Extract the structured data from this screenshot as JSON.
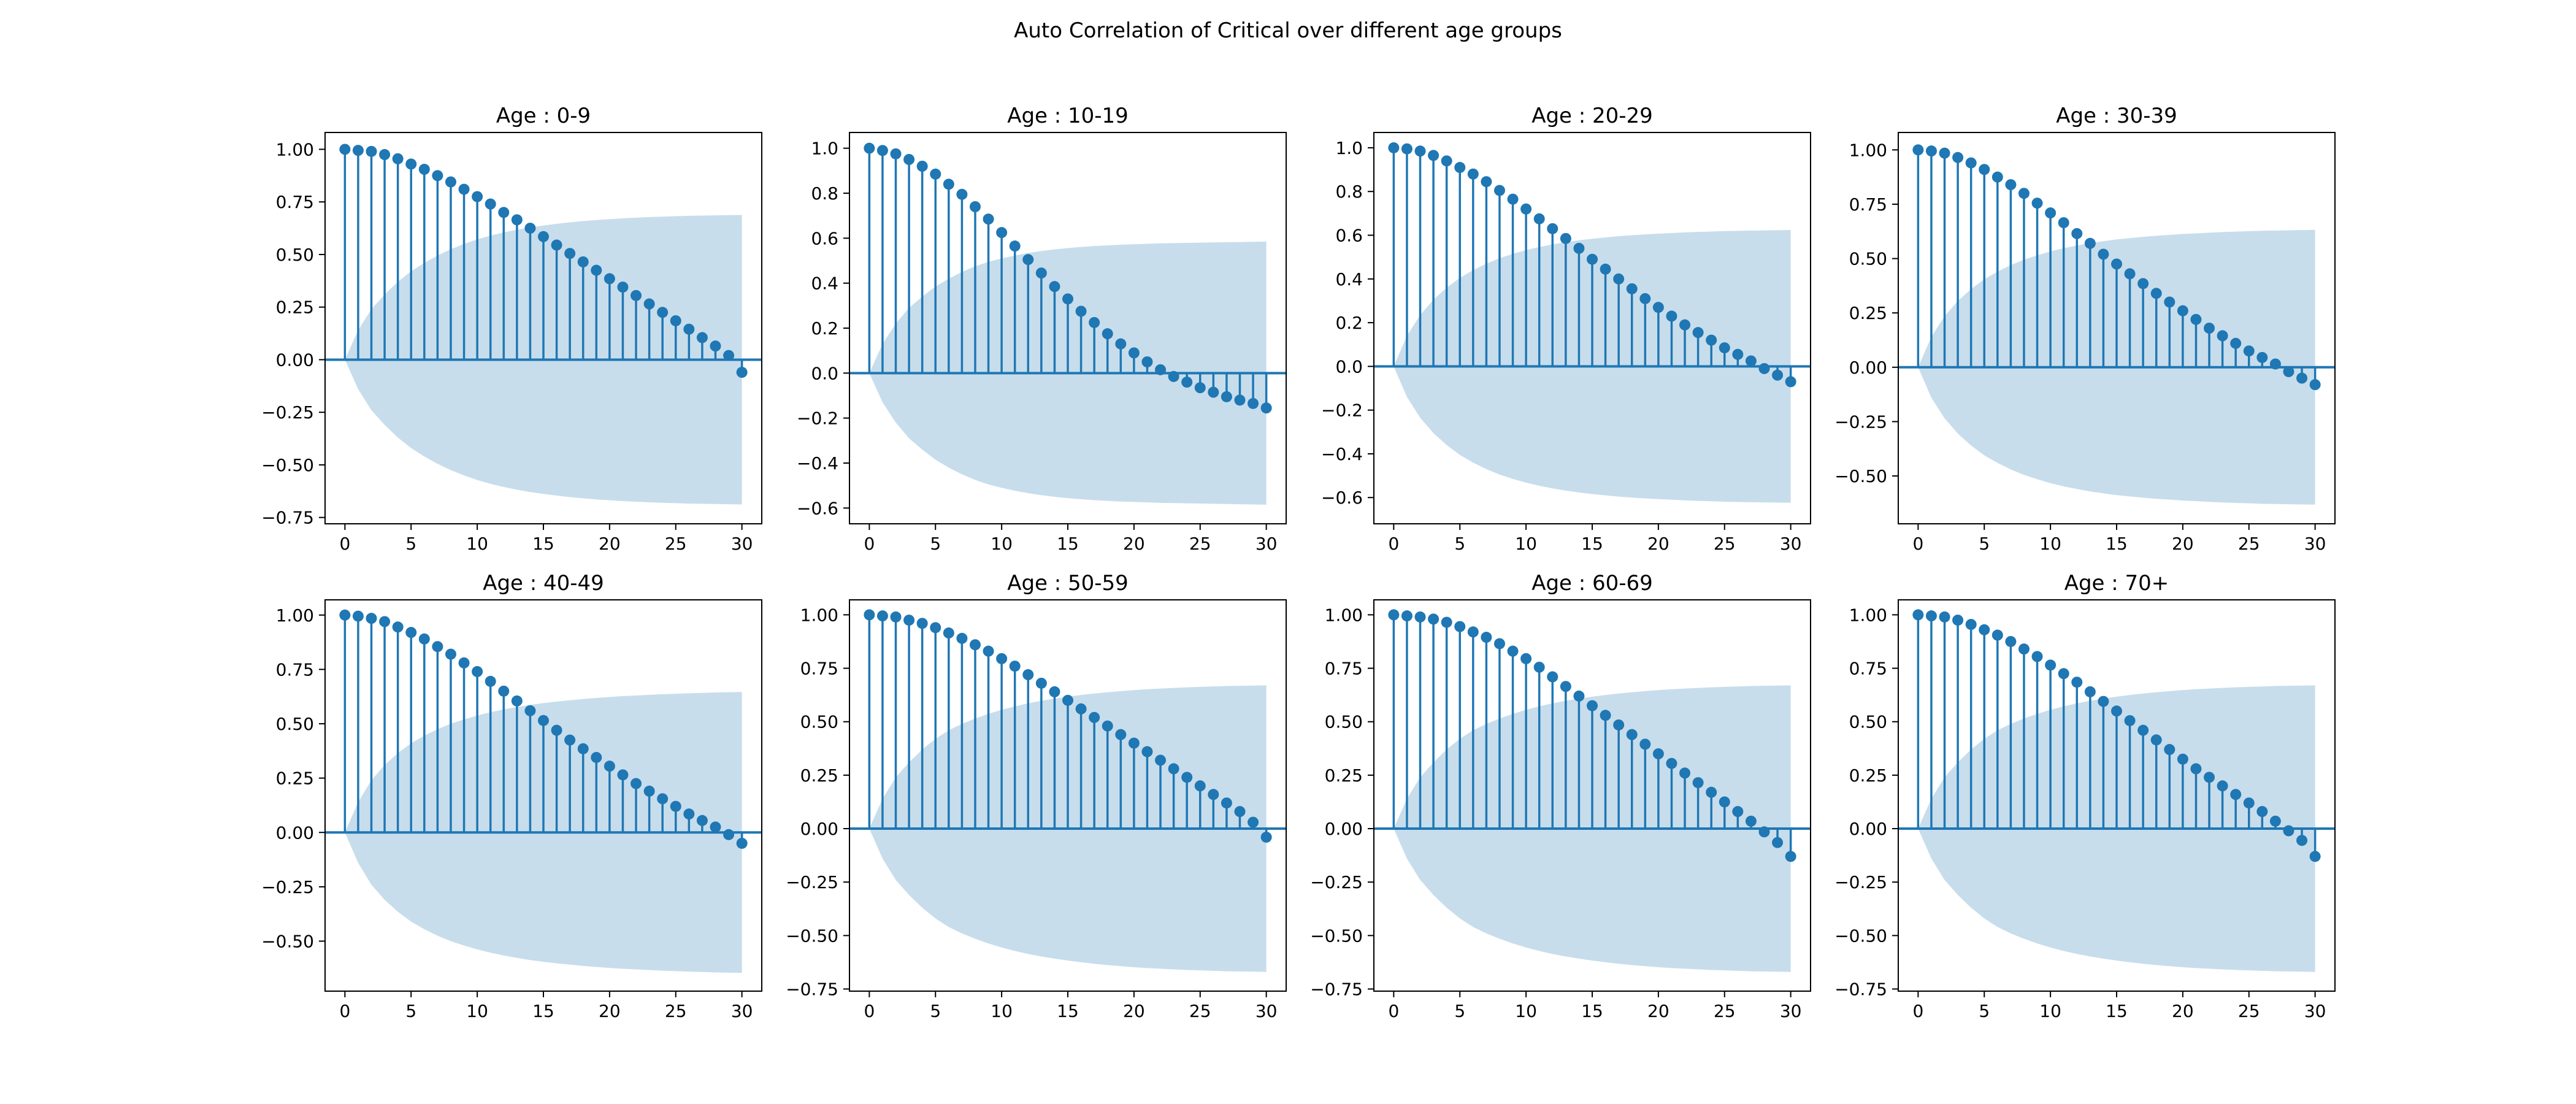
{
  "title": "Auto Correlation of Critical over different age groups",
  "colors": {
    "stem": "#1f77b4",
    "band": "#1f77b4",
    "band_opacity": 0.25
  },
  "chart_data": [
    {
      "type": "stem",
      "title": "Age : 0-9",
      "xlim": [
        -1.5,
        31.5
      ],
      "ylim": [
        -0.78,
        1.08
      ],
      "xticks": [
        0,
        5,
        10,
        15,
        20,
        25,
        30
      ],
      "yticks": [
        -0.75,
        -0.5,
        -0.25,
        0.0,
        0.25,
        0.5,
        0.75,
        1.0
      ],
      "ytick_labels": [
        "−0.75",
        "−0.50",
        "−0.25",
        "0.00",
        "0.25",
        "0.50",
        "0.75",
        "1.00"
      ],
      "lags": [
        0,
        1,
        2,
        3,
        4,
        5,
        6,
        7,
        8,
        9,
        10,
        11,
        12,
        13,
        14,
        15,
        16,
        17,
        18,
        19,
        20,
        21,
        22,
        23,
        24,
        25,
        26,
        27,
        28,
        29,
        30
      ],
      "values": [
        1.0,
        0.995,
        0.99,
        0.975,
        0.955,
        0.93,
        0.905,
        0.875,
        0.845,
        0.81,
        0.775,
        0.74,
        0.7,
        0.665,
        0.625,
        0.585,
        0.545,
        0.505,
        0.465,
        0.425,
        0.385,
        0.345,
        0.305,
        0.265,
        0.225,
        0.185,
        0.145,
        0.105,
        0.065,
        0.02,
        -0.06
      ],
      "confint": [
        0.0,
        0.14,
        0.24,
        0.31,
        0.37,
        0.42,
        0.46,
        0.495,
        0.525,
        0.55,
        0.572,
        0.59,
        0.605,
        0.618,
        0.629,
        0.638,
        0.646,
        0.653,
        0.659,
        0.664,
        0.668,
        0.672,
        0.675,
        0.678,
        0.68,
        0.682,
        0.684,
        0.685,
        0.686,
        0.687,
        0.688
      ]
    },
    {
      "type": "stem",
      "title": "Age : 10-19",
      "xlim": [
        -1.5,
        31.5
      ],
      "ylim": [
        -0.67,
        1.07
      ],
      "xticks": [
        0,
        5,
        10,
        15,
        20,
        25,
        30
      ],
      "yticks": [
        -0.6,
        -0.4,
        -0.2,
        0.0,
        0.2,
        0.4,
        0.6,
        0.8,
        1.0
      ],
      "ytick_labels": [
        "−0.6",
        "−0.4",
        "−0.2",
        "0.0",
        "0.2",
        "0.4",
        "0.6",
        "0.8",
        "1.0"
      ],
      "lags": [
        0,
        1,
        2,
        3,
        4,
        5,
        6,
        7,
        8,
        9,
        10,
        11,
        12,
        13,
        14,
        15,
        16,
        17,
        18,
        19,
        20,
        21,
        22,
        23,
        24,
        25,
        26,
        27,
        28,
        29,
        30
      ],
      "values": [
        1.0,
        0.99,
        0.975,
        0.95,
        0.92,
        0.885,
        0.84,
        0.795,
        0.74,
        0.685,
        0.625,
        0.565,
        0.505,
        0.445,
        0.385,
        0.33,
        0.275,
        0.225,
        0.175,
        0.13,
        0.09,
        0.05,
        0.015,
        -0.015,
        -0.04,
        -0.065,
        -0.085,
        -0.105,
        -0.12,
        -0.135,
        -0.155
      ],
      "confint": [
        0.0,
        0.13,
        0.22,
        0.29,
        0.34,
        0.385,
        0.42,
        0.45,
        0.475,
        0.495,
        0.51,
        0.523,
        0.534,
        0.543,
        0.55,
        0.556,
        0.561,
        0.565,
        0.568,
        0.571,
        0.573,
        0.575,
        0.577,
        0.578,
        0.579,
        0.58,
        0.581,
        0.582,
        0.583,
        0.584,
        0.585
      ]
    },
    {
      "type": "stem",
      "title": "Age : 20-29",
      "xlim": [
        -1.5,
        31.5
      ],
      "ylim": [
        -0.72,
        1.07
      ],
      "xticks": [
        0,
        5,
        10,
        15,
        20,
        25,
        30
      ],
      "yticks": [
        -0.6,
        -0.4,
        -0.2,
        0.0,
        0.2,
        0.4,
        0.6,
        0.8,
        1.0
      ],
      "ytick_labels": [
        "−0.6",
        "−0.4",
        "−0.2",
        "0.0",
        "0.2",
        "0.4",
        "0.6",
        "0.8",
        "1.0"
      ],
      "lags": [
        0,
        1,
        2,
        3,
        4,
        5,
        6,
        7,
        8,
        9,
        10,
        11,
        12,
        13,
        14,
        15,
        16,
        17,
        18,
        19,
        20,
        21,
        22,
        23,
        24,
        25,
        26,
        27,
        28,
        29,
        30
      ],
      "values": [
        1.0,
        0.995,
        0.985,
        0.965,
        0.94,
        0.91,
        0.88,
        0.845,
        0.805,
        0.765,
        0.72,
        0.675,
        0.63,
        0.585,
        0.54,
        0.49,
        0.445,
        0.4,
        0.355,
        0.31,
        0.27,
        0.23,
        0.19,
        0.155,
        0.12,
        0.085,
        0.055,
        0.025,
        -0.01,
        -0.04,
        -0.07
      ],
      "confint": [
        0.0,
        0.14,
        0.235,
        0.305,
        0.36,
        0.405,
        0.44,
        0.47,
        0.495,
        0.515,
        0.532,
        0.546,
        0.558,
        0.568,
        0.577,
        0.584,
        0.59,
        0.596,
        0.6,
        0.604,
        0.607,
        0.61,
        0.613,
        0.615,
        0.617,
        0.619,
        0.62,
        0.621,
        0.622,
        0.623,
        0.624
      ]
    },
    {
      "type": "stem",
      "title": "Age : 30-39",
      "xlim": [
        -1.5,
        31.5
      ],
      "ylim": [
        -0.72,
        1.08
      ],
      "xticks": [
        0,
        5,
        10,
        15,
        20,
        25,
        30
      ],
      "yticks": [
        -0.5,
        -0.25,
        0.0,
        0.25,
        0.5,
        0.75,
        1.0
      ],
      "ytick_labels": [
        "−0.50",
        "−0.25",
        "0.00",
        "0.25",
        "0.50",
        "0.75",
        "1.00"
      ],
      "lags": [
        0,
        1,
        2,
        3,
        4,
        5,
        6,
        7,
        8,
        9,
        10,
        11,
        12,
        13,
        14,
        15,
        16,
        17,
        18,
        19,
        20,
        21,
        22,
        23,
        24,
        25,
        26,
        27,
        28,
        29,
        30
      ],
      "values": [
        1.0,
        0.995,
        0.985,
        0.965,
        0.94,
        0.91,
        0.875,
        0.84,
        0.8,
        0.755,
        0.71,
        0.665,
        0.615,
        0.57,
        0.52,
        0.475,
        0.43,
        0.385,
        0.34,
        0.3,
        0.26,
        0.22,
        0.18,
        0.145,
        0.11,
        0.075,
        0.045,
        0.015,
        -0.02,
        -0.05,
        -0.08
      ],
      "confint": [
        0.0,
        0.14,
        0.235,
        0.305,
        0.36,
        0.405,
        0.44,
        0.47,
        0.495,
        0.515,
        0.533,
        0.548,
        0.56,
        0.571,
        0.58,
        0.588,
        0.594,
        0.6,
        0.605,
        0.609,
        0.613,
        0.616,
        0.619,
        0.622,
        0.624,
        0.626,
        0.628,
        0.629,
        0.63,
        0.631,
        0.632
      ]
    },
    {
      "type": "stem",
      "title": "Age : 40-49",
      "xlim": [
        -1.5,
        31.5
      ],
      "ylim": [
        -0.73,
        1.07
      ],
      "xticks": [
        0,
        5,
        10,
        15,
        20,
        25,
        30
      ],
      "yticks": [
        -0.5,
        -0.25,
        0.0,
        0.25,
        0.5,
        0.75,
        1.0
      ],
      "ytick_labels": [
        "−0.50",
        "−0.25",
        "0.00",
        "0.25",
        "0.50",
        "0.75",
        "1.00"
      ],
      "lags": [
        0,
        1,
        2,
        3,
        4,
        5,
        6,
        7,
        8,
        9,
        10,
        11,
        12,
        13,
        14,
        15,
        16,
        17,
        18,
        19,
        20,
        21,
        22,
        23,
        24,
        25,
        26,
        27,
        28,
        29,
        30
      ],
      "values": [
        1.0,
        0.995,
        0.985,
        0.97,
        0.945,
        0.92,
        0.89,
        0.855,
        0.82,
        0.78,
        0.74,
        0.695,
        0.65,
        0.605,
        0.56,
        0.515,
        0.47,
        0.425,
        0.385,
        0.345,
        0.305,
        0.265,
        0.225,
        0.19,
        0.155,
        0.12,
        0.085,
        0.055,
        0.025,
        -0.01,
        -0.05
      ],
      "confint": [
        0.0,
        0.14,
        0.24,
        0.31,
        0.365,
        0.41,
        0.445,
        0.475,
        0.5,
        0.52,
        0.538,
        0.553,
        0.566,
        0.577,
        0.587,
        0.595,
        0.602,
        0.608,
        0.614,
        0.619,
        0.623,
        0.627,
        0.63,
        0.633,
        0.636,
        0.638,
        0.64,
        0.642,
        0.644,
        0.645,
        0.646
      ]
    },
    {
      "type": "stem",
      "title": "Age : 50-59",
      "xlim": [
        -1.5,
        31.5
      ],
      "ylim": [
        -0.76,
        1.07
      ],
      "xticks": [
        0,
        5,
        10,
        15,
        20,
        25,
        30
      ],
      "yticks": [
        -0.75,
        -0.5,
        -0.25,
        0.0,
        0.25,
        0.5,
        0.75,
        1.0
      ],
      "ytick_labels": [
        "−0.75",
        "−0.50",
        "−0.25",
        "0.00",
        "0.25",
        "0.50",
        "0.75",
        "1.00"
      ],
      "lags": [
        0,
        1,
        2,
        3,
        4,
        5,
        6,
        7,
        8,
        9,
        10,
        11,
        12,
        13,
        14,
        15,
        16,
        17,
        18,
        19,
        20,
        21,
        22,
        23,
        24,
        25,
        26,
        27,
        28,
        29,
        30
      ],
      "values": [
        1.0,
        0.995,
        0.99,
        0.975,
        0.96,
        0.94,
        0.915,
        0.89,
        0.86,
        0.83,
        0.795,
        0.76,
        0.72,
        0.68,
        0.64,
        0.6,
        0.56,
        0.52,
        0.48,
        0.44,
        0.4,
        0.36,
        0.32,
        0.28,
        0.24,
        0.2,
        0.16,
        0.12,
        0.08,
        0.03,
        -0.04
      ],
      "confint": [
        0.0,
        0.14,
        0.24,
        0.31,
        0.37,
        0.42,
        0.46,
        0.49,
        0.515,
        0.537,
        0.556,
        0.572,
        0.586,
        0.598,
        0.608,
        0.617,
        0.625,
        0.632,
        0.638,
        0.643,
        0.648,
        0.652,
        0.655,
        0.658,
        0.661,
        0.663,
        0.665,
        0.667,
        0.668,
        0.669,
        0.67
      ]
    },
    {
      "type": "stem",
      "title": "Age : 60-69",
      "xlim": [
        -1.5,
        31.5
      ],
      "ylim": [
        -0.76,
        1.07
      ],
      "xticks": [
        0,
        5,
        10,
        15,
        20,
        25,
        30
      ],
      "yticks": [
        -0.75,
        -0.5,
        -0.25,
        0.0,
        0.25,
        0.5,
        0.75,
        1.0
      ],
      "ytick_labels": [
        "−0.75",
        "−0.50",
        "−0.25",
        "0.00",
        "0.25",
        "0.50",
        "0.75",
        "1.00"
      ],
      "lags": [
        0,
        1,
        2,
        3,
        4,
        5,
        6,
        7,
        8,
        9,
        10,
        11,
        12,
        13,
        14,
        15,
        16,
        17,
        18,
        19,
        20,
        21,
        22,
        23,
        24,
        25,
        26,
        27,
        28,
        29,
        30
      ],
      "values": [
        1.0,
        0.995,
        0.99,
        0.98,
        0.965,
        0.945,
        0.92,
        0.895,
        0.865,
        0.83,
        0.795,
        0.755,
        0.71,
        0.665,
        0.62,
        0.575,
        0.53,
        0.485,
        0.44,
        0.395,
        0.35,
        0.305,
        0.26,
        0.215,
        0.17,
        0.125,
        0.08,
        0.035,
        -0.015,
        -0.065,
        -0.13
      ],
      "confint": [
        0.0,
        0.14,
        0.24,
        0.31,
        0.37,
        0.42,
        0.46,
        0.49,
        0.515,
        0.537,
        0.556,
        0.572,
        0.586,
        0.598,
        0.608,
        0.617,
        0.625,
        0.632,
        0.638,
        0.643,
        0.648,
        0.652,
        0.655,
        0.658,
        0.661,
        0.663,
        0.665,
        0.667,
        0.668,
        0.669,
        0.67
      ]
    },
    {
      "type": "stem",
      "title": "Age : 70+",
      "xlim": [
        -1.5,
        31.5
      ],
      "ylim": [
        -0.76,
        1.07
      ],
      "xticks": [
        0,
        5,
        10,
        15,
        20,
        25,
        30
      ],
      "yticks": [
        -0.75,
        -0.5,
        -0.25,
        0.0,
        0.25,
        0.5,
        0.75,
        1.0
      ],
      "ytick_labels": [
        "−0.75",
        "−0.50",
        "−0.25",
        "0.00",
        "0.25",
        "0.50",
        "0.75",
        "1.00"
      ],
      "lags": [
        0,
        1,
        2,
        3,
        4,
        5,
        6,
        7,
        8,
        9,
        10,
        11,
        12,
        13,
        14,
        15,
        16,
        17,
        18,
        19,
        20,
        21,
        22,
        23,
        24,
        25,
        26,
        27,
        28,
        29,
        30
      ],
      "values": [
        1.0,
        0.995,
        0.99,
        0.975,
        0.955,
        0.93,
        0.905,
        0.875,
        0.84,
        0.805,
        0.765,
        0.725,
        0.685,
        0.64,
        0.595,
        0.55,
        0.505,
        0.46,
        0.415,
        0.37,
        0.325,
        0.28,
        0.24,
        0.2,
        0.16,
        0.12,
        0.08,
        0.035,
        -0.01,
        -0.055,
        -0.13
      ],
      "confint": [
        0.0,
        0.14,
        0.24,
        0.31,
        0.37,
        0.42,
        0.46,
        0.49,
        0.515,
        0.537,
        0.556,
        0.572,
        0.586,
        0.598,
        0.608,
        0.617,
        0.625,
        0.632,
        0.638,
        0.643,
        0.648,
        0.652,
        0.655,
        0.658,
        0.661,
        0.663,
        0.665,
        0.667,
        0.668,
        0.669,
        0.67
      ]
    }
  ]
}
